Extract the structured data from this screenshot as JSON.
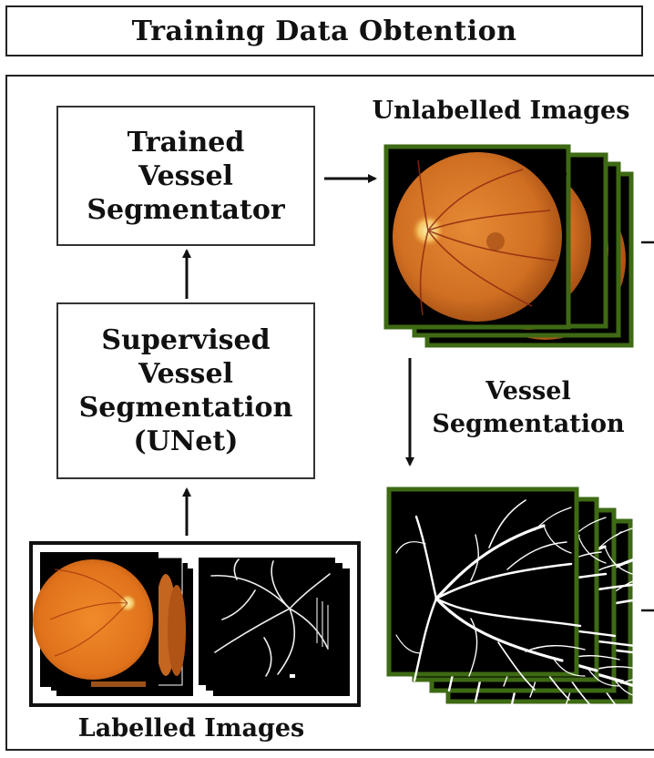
{
  "title": "Training Data Obtention",
  "nodes": {
    "trained_segmentator": "Trained\nVessel\nSegmentator",
    "supervised_segmentation": "Supervised\nVessel\nSegmentation\n(UNet)"
  },
  "labels": {
    "unlabelled_images": "Unlabelled Images",
    "vessel_segmentation": "Vessel\nSegmentation",
    "labelled_images": "Labelled Images"
  },
  "colors": {
    "stack_border": "#3e6a14",
    "fundus_orange": "#d9782a",
    "vessel_white": "#ffffff",
    "background_black": "#000000"
  }
}
